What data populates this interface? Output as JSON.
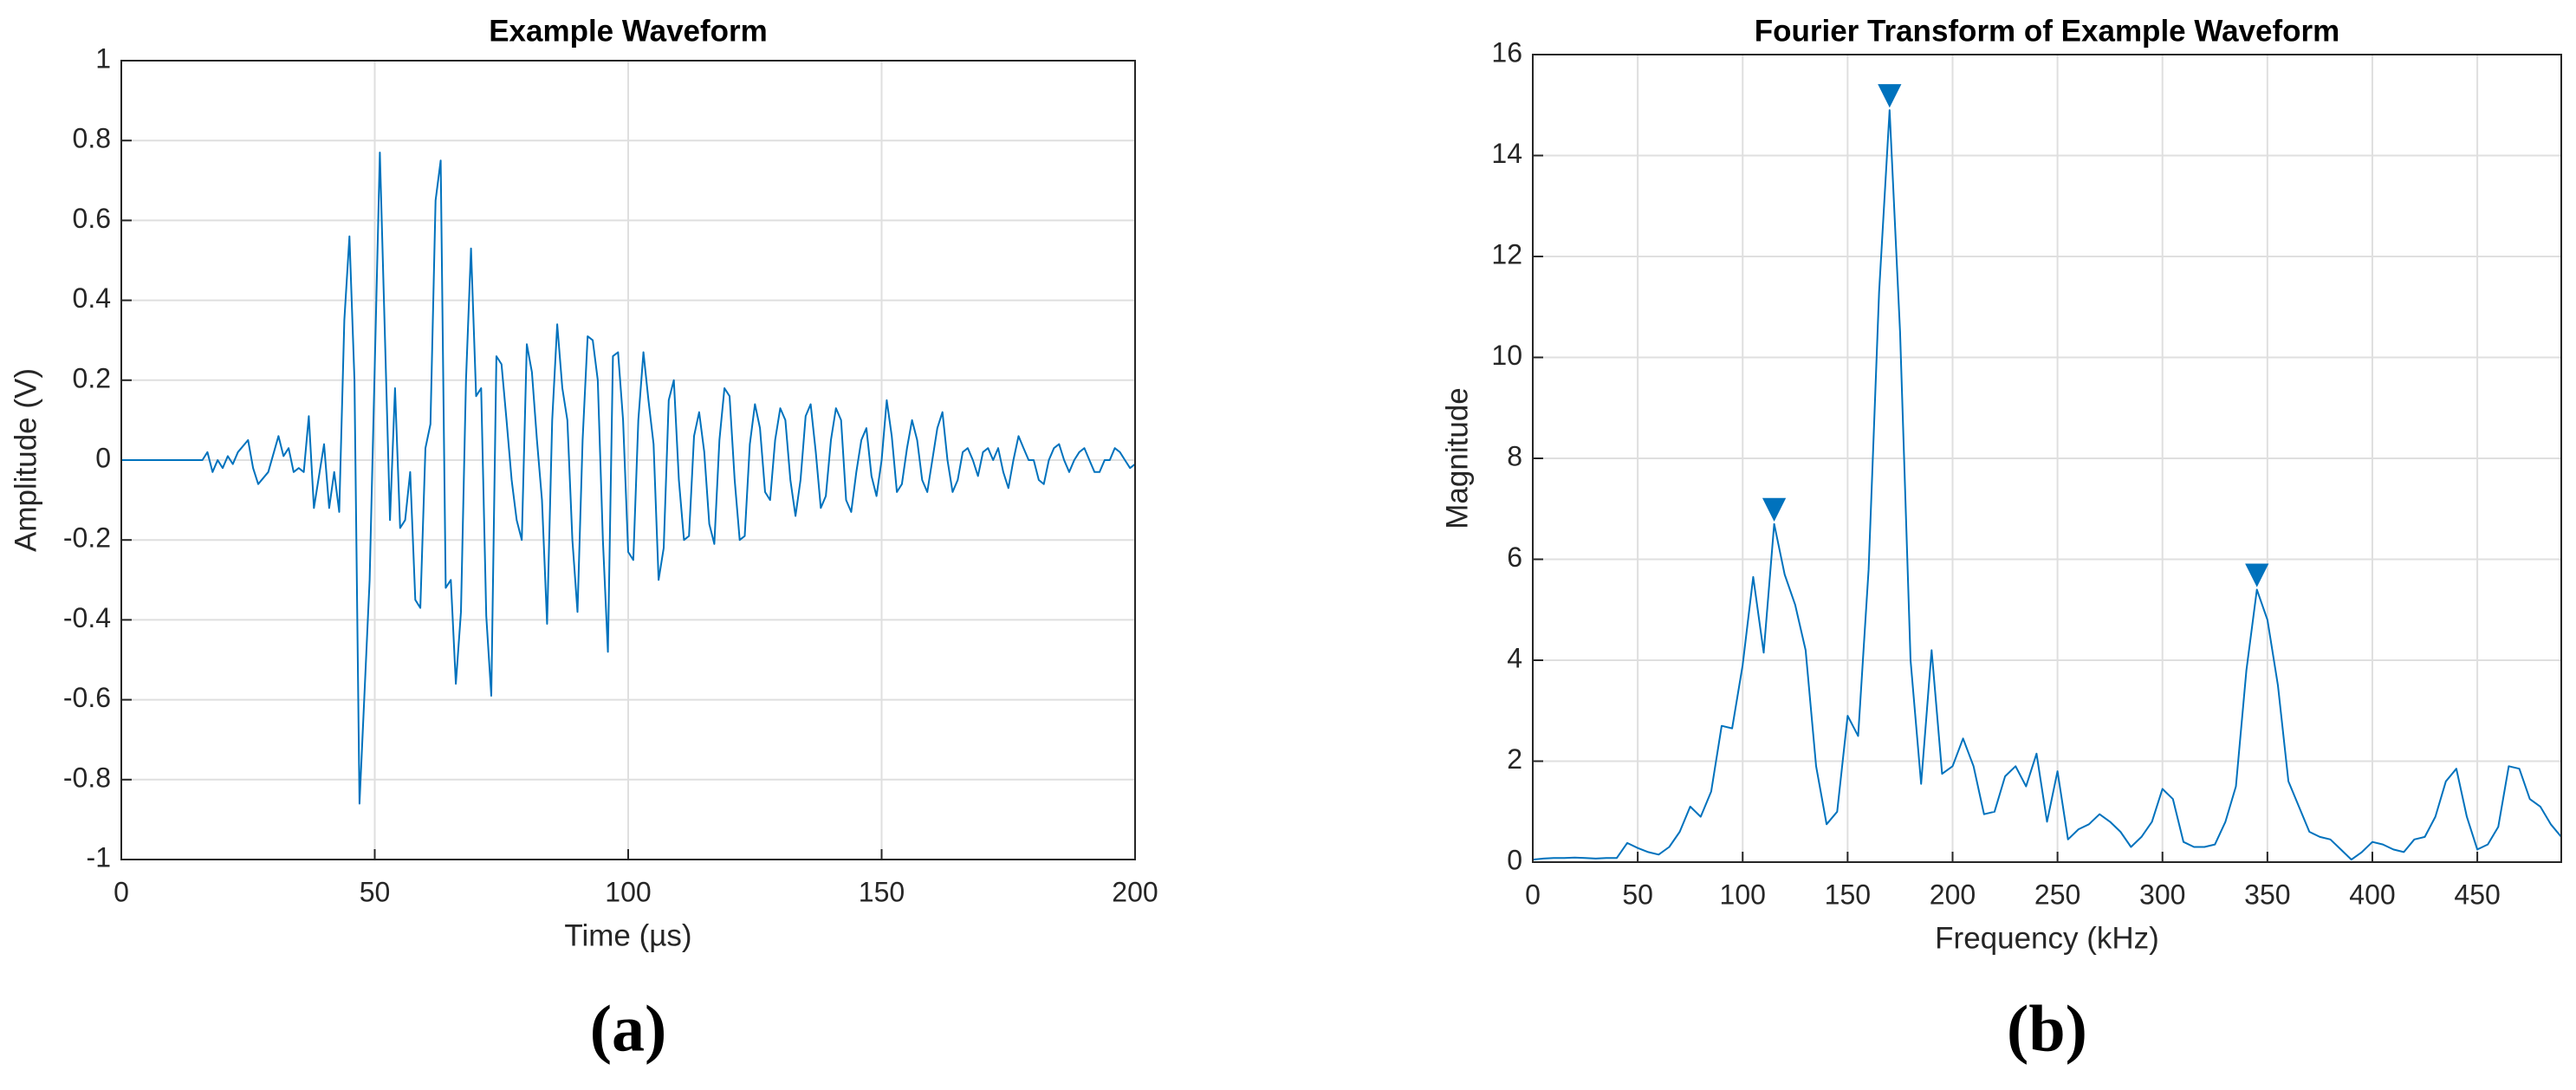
{
  "chart_data": [
    {
      "type": "line",
      "title": "Example Waveform",
      "xlabel": "Time (µs)",
      "ylabel": "Amplitude (V)",
      "panel_label": "(a)",
      "xlim": [
        0,
        200
      ],
      "ylim": [
        -1,
        1
      ],
      "xticks": [
        0,
        50,
        100,
        150,
        200
      ],
      "yticks": [
        -1,
        -0.8,
        -0.6,
        -0.4,
        -0.2,
        0,
        0.2,
        0.4,
        0.6,
        0.8,
        1
      ],
      "grid": true,
      "series": [
        {
          "color": "#0072bd",
          "style": "line",
          "x": [
            0,
            16,
            17,
            18,
            19,
            20,
            21,
            22,
            23,
            25,
            26,
            27,
            29,
            31,
            32,
            33,
            34,
            35,
            36,
            37,
            38,
            40,
            41,
            42,
            43,
            44,
            45,
            46,
            47,
            49,
            51,
            53,
            54,
            55,
            56,
            57,
            58,
            59,
            60,
            61,
            62,
            63,
            64,
            65,
            66,
            67,
            68,
            69,
            70,
            71,
            72,
            73,
            74,
            75,
            76,
            77,
            78,
            79,
            80,
            81,
            82,
            83,
            84,
            85,
            86,
            87,
            88,
            89,
            90,
            91,
            92,
            93,
            94,
            95,
            96,
            97,
            98,
            99,
            100,
            101,
            102,
            103,
            104,
            105,
            106,
            107,
            108,
            109,
            110,
            111,
            112,
            113,
            114,
            115,
            116,
            117,
            118,
            119,
            120,
            121,
            122,
            123,
            124,
            125,
            126,
            127,
            128,
            129,
            130,
            131,
            132,
            133,
            134,
            135,
            136,
            137,
            138,
            139,
            140,
            141,
            142,
            143,
            144,
            145,
            146,
            147,
            148,
            149,
            150,
            151,
            152,
            153,
            154,
            155,
            156,
            157,
            158,
            159,
            160,
            161,
            162,
            163,
            164,
            165,
            166,
            167,
            168,
            169,
            170,
            171,
            172,
            173,
            174,
            175,
            176,
            177,
            178,
            179,
            180,
            181,
            182,
            183,
            184,
            185,
            186,
            187,
            188,
            189,
            190,
            191,
            192,
            193,
            194,
            195,
            196,
            197,
            198,
            199,
            200
          ],
          "values": [
            0,
            0,
            0.02,
            -0.03,
            0,
            -0.02,
            0.01,
            -0.01,
            0.02,
            0.05,
            -0.02,
            -0.06,
            -0.03,
            0.06,
            0.01,
            0.03,
            -0.03,
            -0.02,
            -0.03,
            0.11,
            -0.12,
            0.04,
            -0.12,
            -0.03,
            -0.13,
            0.35,
            0.56,
            0.2,
            -0.86,
            -0.3,
            0.77,
            -0.15,
            0.18,
            -0.17,
            -0.15,
            -0.03,
            -0.35,
            -0.37,
            0.03,
            0.09,
            0.65,
            0.75,
            -0.32,
            -0.3,
            -0.56,
            -0.38,
            0.2,
            0.53,
            0.16,
            0.18,
            -0.39,
            -0.59,
            0.26,
            0.24,
            0.1,
            -0.05,
            -0.15,
            -0.2,
            0.29,
            0.22,
            0.05,
            -0.1,
            -0.41,
            0.1,
            0.34,
            0.18,
            0.1,
            -0.2,
            -0.38,
            0.05,
            0.31,
            0.3,
            0.2,
            -0.2,
            -0.48,
            0.26,
            0.27,
            0.1,
            -0.23,
            -0.25,
            0.1,
            0.27,
            0.15,
            0.04,
            -0.3,
            -0.22,
            0.15,
            0.2,
            -0.05,
            -0.2,
            -0.19,
            0.06,
            0.12,
            0.02,
            -0.16,
            -0.21,
            0.05,
            0.18,
            0.16,
            -0.05,
            -0.2,
            -0.19,
            0.04,
            0.14,
            0.08,
            -0.08,
            -0.1,
            0.05,
            0.13,
            0.1,
            -0.05,
            -0.14,
            -0.05,
            0.11,
            0.14,
            0.02,
            -0.12,
            -0.09,
            0.05,
            0.13,
            0.1,
            -0.1,
            -0.13,
            -0.03,
            0.05,
            0.08,
            -0.04,
            -0.09,
            0,
            0.15,
            0.06,
            -0.08,
            -0.06,
            0.03,
            0.1,
            0.05,
            -0.05,
            -0.08,
            0,
            0.08,
            0.12,
            0,
            -0.08,
            -0.05,
            0.02,
            0.03,
            0,
            -0.04,
            0.02,
            0.03,
            0,
            0.03,
            -0.03,
            -0.07,
            0,
            0.06,
            0.03,
            0,
            0,
            -0.05,
            -0.06,
            0,
            0.03,
            0.04,
            0,
            -0.03,
            0,
            0.02,
            0.03,
            0,
            -0.03,
            -0.03,
            0,
            0,
            0.03,
            0.02,
            0,
            -0.02,
            -0.01
          ]
        }
      ]
    },
    {
      "type": "line",
      "title": "Fourier Transform of Example Waveform",
      "xlabel": "Frequency (kHz)",
      "ylabel": "Magnitude",
      "panel_label": "(b)",
      "xlim": [
        0,
        490
      ],
      "ylim": [
        0,
        16
      ],
      "xticks": [
        0,
        50,
        100,
        150,
        200,
        250,
        300,
        350,
        400,
        450
      ],
      "yticks": [
        0,
        2,
        4,
        6,
        8,
        10,
        12,
        14,
        16
      ],
      "grid": true,
      "series": [
        {
          "color": "#0072bd",
          "style": "line",
          "x": [
            0,
            5,
            10,
            15,
            20,
            25,
            30,
            35,
            40,
            45,
            50,
            55,
            60,
            65,
            70,
            75,
            80,
            85,
            90,
            95,
            100,
            105,
            110,
            115,
            120,
            125,
            130,
            135,
            140,
            145,
            150,
            155,
            160,
            165,
            170,
            175,
            180,
            185,
            190,
            195,
            200,
            205,
            210,
            215,
            220,
            225,
            230,
            235,
            240,
            245,
            250,
            255,
            260,
            265,
            270,
            275,
            280,
            285,
            290,
            295,
            300,
            305,
            310,
            315,
            320,
            325,
            330,
            335,
            340,
            345,
            350,
            355,
            360,
            365,
            370,
            375,
            380,
            385,
            390,
            395,
            400,
            405,
            410,
            415,
            420,
            425,
            430,
            435,
            440,
            445,
            450,
            455,
            460,
            465,
            470,
            475,
            480,
            485,
            490
          ],
          "values": [
            0.05,
            0.07,
            0.08,
            0.08,
            0.09,
            0.08,
            0.07,
            0.08,
            0.08,
            0.38,
            0.28,
            0.2,
            0.15,
            0.3,
            0.6,
            1.1,
            0.9,
            1.4,
            2.7,
            2.65,
            3.9,
            5.65,
            4.15,
            6.7,
            5.7,
            5.1,
            4.2,
            1.9,
            0.75,
            1.0,
            2.9,
            2.5,
            5.8,
            11.3,
            14.9,
            10.5,
            4.0,
            1.55,
            4.2,
            1.75,
            1.9,
            2.45,
            1.9,
            0.95,
            1.0,
            1.7,
            1.9,
            1.5,
            2.15,
            0.8,
            1.8,
            0.45,
            0.65,
            0.75,
            0.95,
            0.8,
            0.6,
            0.3,
            0.5,
            0.8,
            1.45,
            1.25,
            0.4,
            0.3,
            0.3,
            0.35,
            0.8,
            1.5,
            3.8,
            5.4,
            4.8,
            3.5,
            1.6,
            1.1,
            0.6,
            0.5,
            0.45,
            0.25,
            0.05,
            0.2,
            0.4,
            0.35,
            0.25,
            0.2,
            0.45,
            0.5,
            0.9,
            1.6,
            1.85,
            0.9,
            0.25,
            0.35,
            0.7,
            1.9,
            1.85,
            1.25,
            1.1,
            0.75,
            0.5
          ]
        },
        {
          "color": "#0072bd",
          "style": "marker",
          "marker": "triangle-down",
          "x": [
            115,
            170,
            345
          ],
          "values": [
            6.7,
            14.9,
            5.4
          ]
        }
      ]
    }
  ]
}
